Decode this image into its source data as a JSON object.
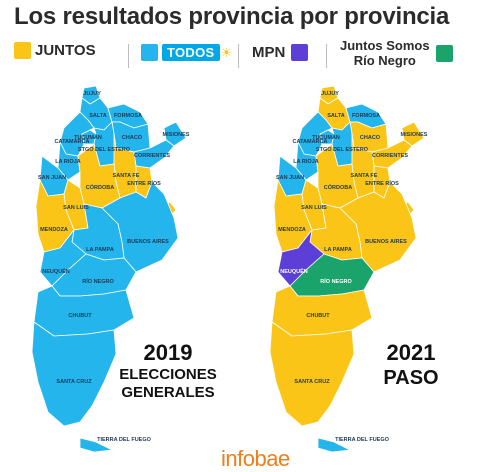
{
  "title": "Los resultados provincia por provincia",
  "legend": {
    "juntos": {
      "label": "JUNTOS",
      "color": "#fbc518"
    },
    "todos": {
      "label": "TODOS",
      "color": "#23b5ec"
    },
    "mpn": {
      "label": "MPN",
      "color": "#5b3fd6"
    },
    "jsrn": {
      "line1": "Juntos Somos",
      "line2": "Río Negro",
      "color": "#1aa36b"
    }
  },
  "maps": [
    {
      "big_line1": "2019",
      "big_line2": "ELECCIONES",
      "big_line3": "GENERALES",
      "provinces": [
        {
          "id": "jujuy",
          "label": "JUJUY",
          "party": "todos"
        },
        {
          "id": "salta",
          "label": "SALTA",
          "party": "todos"
        },
        {
          "id": "formosa",
          "label": "FORMOSA",
          "party": "todos"
        },
        {
          "id": "misiones",
          "label": "MISIONES",
          "party": "todos"
        },
        {
          "id": "chaco",
          "label": "CHACO",
          "party": "todos"
        },
        {
          "id": "tucuman",
          "label": "TUCUMÁN",
          "party": "todos"
        },
        {
          "id": "catamarca",
          "label": "CATAMARCA",
          "party": "todos"
        },
        {
          "id": "stgo",
          "label": "STGO DEL ESTERO",
          "party": "todos"
        },
        {
          "id": "corrientes",
          "label": "CORRIENTES",
          "party": "todos"
        },
        {
          "id": "larioja",
          "label": "LA RIOJA",
          "party": "todos"
        },
        {
          "id": "santafe",
          "label": "SANTA FE",
          "party": "juntos"
        },
        {
          "id": "sanjuan",
          "label": "SAN JUAN",
          "party": "todos"
        },
        {
          "id": "cordoba",
          "label": "CÓRDOBA",
          "party": "juntos"
        },
        {
          "id": "entrerios",
          "label": "ENTRE RÍOS",
          "party": "juntos"
        },
        {
          "id": "sanluis",
          "label": "SAN LUIS",
          "party": "juntos"
        },
        {
          "id": "mendoza",
          "label": "MENDOZA",
          "party": "juntos"
        },
        {
          "id": "caba",
          "label": "",
          "party": "juntos"
        },
        {
          "id": "buenosaires",
          "label": "BUENOS AIRES",
          "party": "todos"
        },
        {
          "id": "lapampa",
          "label": "LA PAMPA",
          "party": "todos"
        },
        {
          "id": "neuquen",
          "label": "NEUQUÉN",
          "party": "todos"
        },
        {
          "id": "rionegro",
          "label": "RÍO NEGRO",
          "party": "todos"
        },
        {
          "id": "chubut",
          "label": "CHUBUT",
          "party": "todos"
        },
        {
          "id": "santacruz",
          "label": "SANTA CRUZ",
          "party": "todos"
        },
        {
          "id": "tierradelfuego",
          "label": "TIERRA DEL FUEGO",
          "party": "todos"
        }
      ]
    },
    {
      "big_line1": "2021",
      "big_line2": "PASO",
      "big_line3": "",
      "provinces": [
        {
          "id": "jujuy",
          "label": "JUJUY",
          "party": "juntos"
        },
        {
          "id": "salta",
          "label": "SALTA",
          "party": "juntos"
        },
        {
          "id": "formosa",
          "label": "FORMOSA",
          "party": "todos"
        },
        {
          "id": "misiones",
          "label": "MISIONES",
          "party": "juntos"
        },
        {
          "id": "chaco",
          "label": "CHACO",
          "party": "juntos"
        },
        {
          "id": "tucuman",
          "label": "TUCUMÁN",
          "party": "todos"
        },
        {
          "id": "catamarca",
          "label": "CATAMARCA",
          "party": "todos"
        },
        {
          "id": "stgo",
          "label": "STGO DEL ESTERO",
          "party": "todos"
        },
        {
          "id": "corrientes",
          "label": "CORRIENTES",
          "party": "juntos"
        },
        {
          "id": "larioja",
          "label": "LA RIOJA",
          "party": "todos"
        },
        {
          "id": "santafe",
          "label": "SANTA FE",
          "party": "juntos"
        },
        {
          "id": "sanjuan",
          "label": "SAN JUAN",
          "party": "todos"
        },
        {
          "id": "cordoba",
          "label": "CÓRDOBA",
          "party": "juntos"
        },
        {
          "id": "entrerios",
          "label": "ENTRE RÍOS",
          "party": "juntos"
        },
        {
          "id": "sanluis",
          "label": "SAN LUIS",
          "party": "juntos"
        },
        {
          "id": "mendoza",
          "label": "MENDOZA",
          "party": "juntos"
        },
        {
          "id": "caba",
          "label": "",
          "party": "juntos"
        },
        {
          "id": "buenosaires",
          "label": "BUENOS AIRES",
          "party": "juntos"
        },
        {
          "id": "lapampa",
          "label": "LA PAMPA",
          "party": "juntos"
        },
        {
          "id": "neuquen",
          "label": "NEUQUÉN",
          "party": "mpn"
        },
        {
          "id": "rionegro",
          "label": "RÍO NEGRO",
          "party": "jsrn"
        },
        {
          "id": "chubut",
          "label": "CHUBUT",
          "party": "juntos"
        },
        {
          "id": "santacruz",
          "label": "SANTA CRUZ",
          "party": "juntos"
        },
        {
          "id": "tierradelfuego",
          "label": "TIERRA DEL FUEGO",
          "party": "todos"
        }
      ]
    }
  ],
  "source_logo": "infobae"
}
